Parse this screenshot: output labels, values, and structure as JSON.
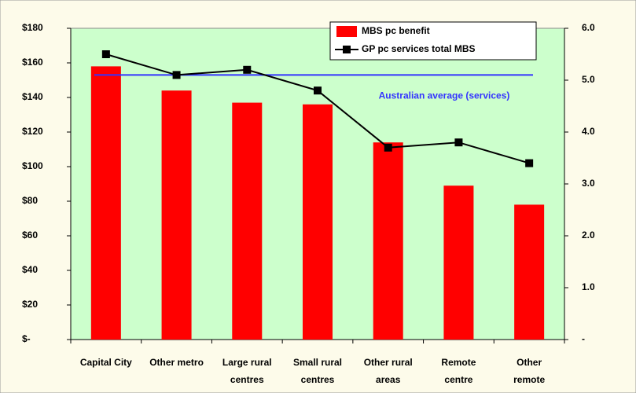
{
  "chart_data": {
    "type": "bar_line",
    "categories": [
      [
        "Capital City"
      ],
      [
        "Other metro"
      ],
      [
        "Large rural",
        "centres"
      ],
      [
        "Small rural",
        "centres"
      ],
      [
        "Other rural",
        "areas"
      ],
      [
        "Remote",
        "centre"
      ],
      [
        "Other",
        "remote"
      ]
    ],
    "series": [
      {
        "name": "MBS pc benefit",
        "color": "#ff0000",
        "type": "bar",
        "values": [
          158,
          144,
          137,
          136,
          114,
          89,
          78
        ]
      },
      {
        "name": "GP pc services total MBS",
        "color": "#000000",
        "type": "line",
        "axis": "y2",
        "values": [
          5.5,
          5.1,
          5.2,
          4.8,
          3.7,
          3.8,
          3.4
        ]
      }
    ],
    "reference_line": {
      "label": "Australian average (services)",
      "value": 5.1,
      "axis": "y2",
      "color": "#3333ff"
    },
    "ylim": [
      0,
      180
    ],
    "yticks": [
      {
        "value": 0,
        "label": "$-"
      },
      {
        "value": 20,
        "label": "$20"
      },
      {
        "value": 40,
        "label": "$40"
      },
      {
        "value": 60,
        "label": "$60"
      },
      {
        "value": 80,
        "label": "$80"
      },
      {
        "value": 100,
        "label": "$100"
      },
      {
        "value": 120,
        "label": "$120"
      },
      {
        "value": 140,
        "label": "$140"
      },
      {
        "value": 160,
        "label": "$160"
      },
      {
        "value": 180,
        "label": "$180"
      }
    ],
    "y2lim": [
      0,
      6
    ],
    "y2ticks": [
      {
        "value": 0,
        "label": "-"
      },
      {
        "value": 1,
        "label": "1.0"
      },
      {
        "value": 2,
        "label": "2.0"
      },
      {
        "value": 3,
        "label": "3.0"
      },
      {
        "value": 4,
        "label": "4.0"
      },
      {
        "value": 5,
        "label": "5.0"
      },
      {
        "value": 6,
        "label": "6.0"
      }
    ],
    "legend": "top-right"
  }
}
